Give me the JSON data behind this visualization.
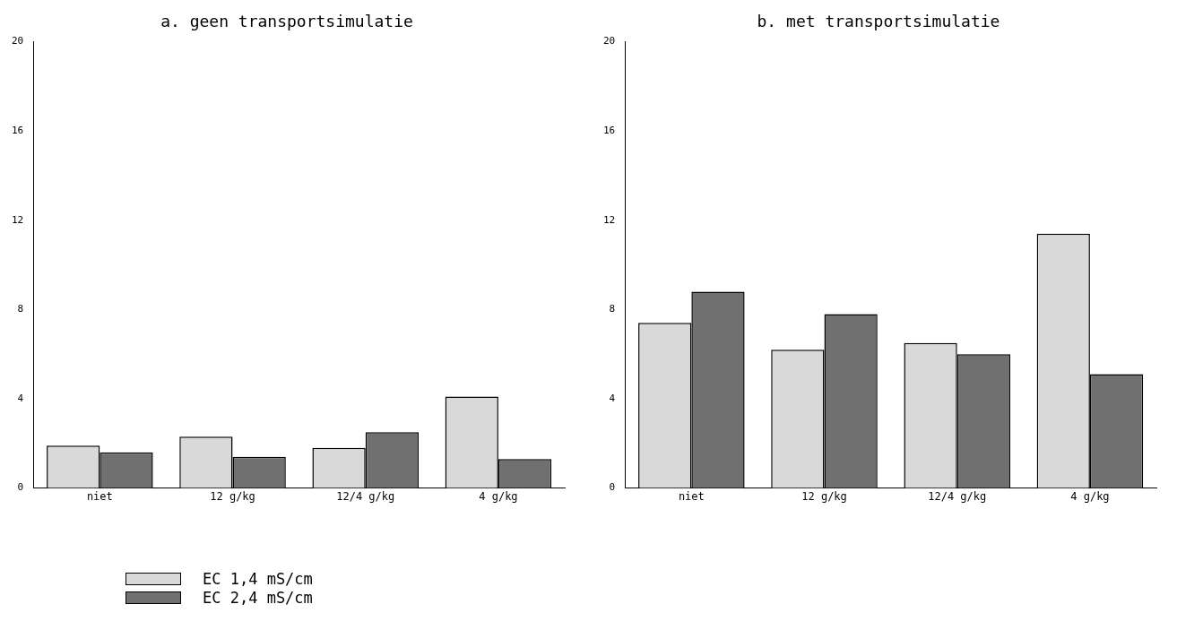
{
  "chart_data": [
    {
      "type": "bar",
      "title": "a. geen transportsimulatie",
      "categories": [
        "niet",
        "12 g/kg",
        "12/4 g/kg",
        "4 g/kg"
      ],
      "series": [
        {
          "name": "EC 1,4 mS/cm",
          "color": "#d9d9d9",
          "values": [
            1.9,
            2.3,
            1.8,
            4.1
          ]
        },
        {
          "name": "EC 2,4 mS/cm",
          "color": "#707070",
          "values": [
            1.6,
            1.4,
            2.5,
            1.3
          ]
        }
      ],
      "ylim": [
        0,
        20
      ],
      "yticks": [
        0,
        4,
        8,
        12,
        16,
        20
      ],
      "grid": false,
      "legend": "bottom left"
    },
    {
      "type": "bar",
      "title": "b. met transportsimulatie",
      "categories": [
        "niet",
        "12 g/kg",
        "12/4 g/kg",
        "4 g/kg"
      ],
      "series": [
        {
          "color": "#d9d9d9",
          "values": [
            7.4,
            6.2,
            6.5,
            11.4
          ]
        },
        {
          "color": "#707070",
          "values": [
            8.8,
            7.8,
            6.0,
            5.1
          ]
        }
      ],
      "ylim": [
        0,
        20
      ],
      "yticks": [
        0,
        4,
        8,
        12,
        16,
        20
      ],
      "grid": false
    }
  ]
}
